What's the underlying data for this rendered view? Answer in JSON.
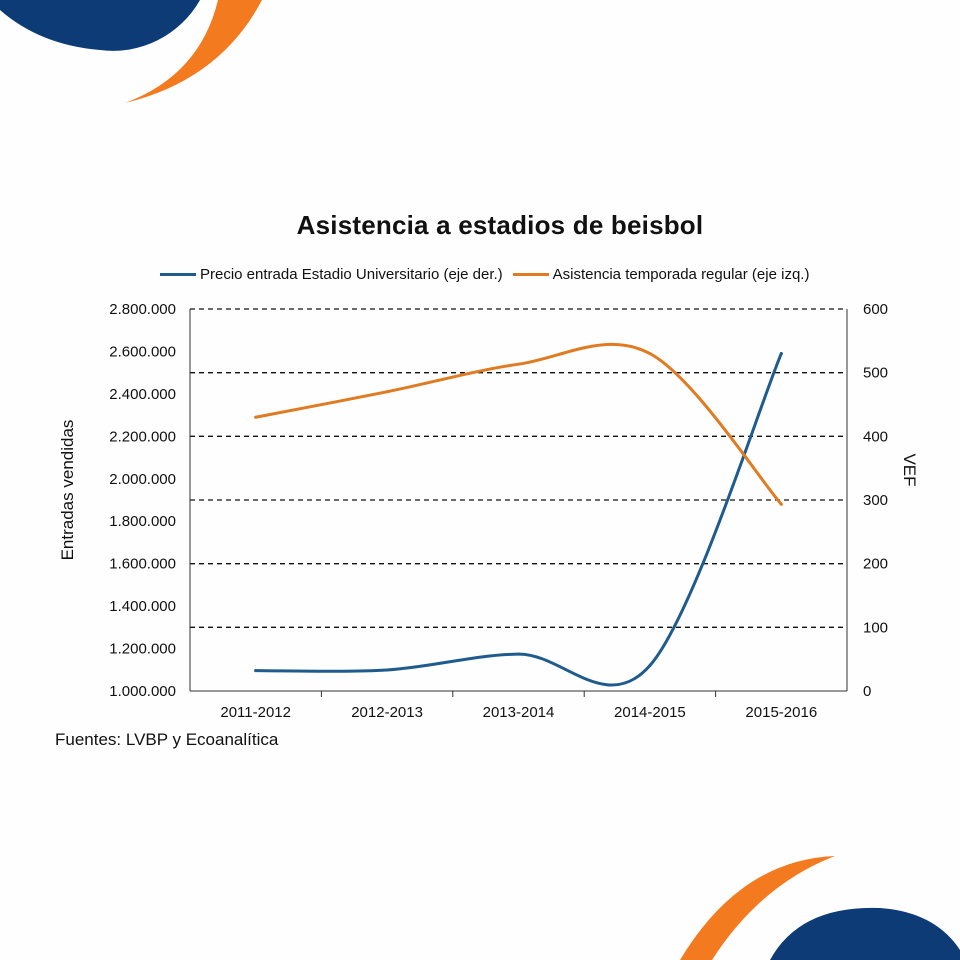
{
  "chart_data": {
    "type": "line",
    "title": "Asistencia a estadios de beisbol",
    "categories": [
      "2011-2012",
      "2012-2013",
      "2013-2014",
      "2014-2015",
      "2015-2016"
    ],
    "series": [
      {
        "name": "Precio entrada Estadio Universitario (eje der.)",
        "axis": "right",
        "color": "#1f5b8c",
        "values": [
          32,
          33,
          58,
          40,
          530
        ]
      },
      {
        "name": "Asistencia temporada regular (eje izq.)",
        "axis": "left",
        "color": "#e07b22",
        "values": [
          2290000,
          2410000,
          2540000,
          2590000,
          1880000
        ]
      }
    ],
    "ylabel": "Entradas vendidas",
    "ylim": [
      1000000,
      2800000
    ],
    "yticks": [
      "1.000.000",
      "1.200.000",
      "1.400.000",
      "1.600.000",
      "1.800.000",
      "2.000.000",
      "2.200.000",
      "2.400.000",
      "2.600.000",
      "2.800.000"
    ],
    "y2label": "VEF",
    "y2lim": [
      0,
      600
    ],
    "y2ticks": [
      "0",
      "100",
      "200",
      "300",
      "400",
      "500",
      "600"
    ],
    "grid": "dashed horizontal at right-axis ticks"
  },
  "source_note": "Fuentes: LVBP y Ecoanalítica",
  "colors": {
    "accent_blue": "#0d3b75",
    "accent_orange": "#f47a20"
  }
}
